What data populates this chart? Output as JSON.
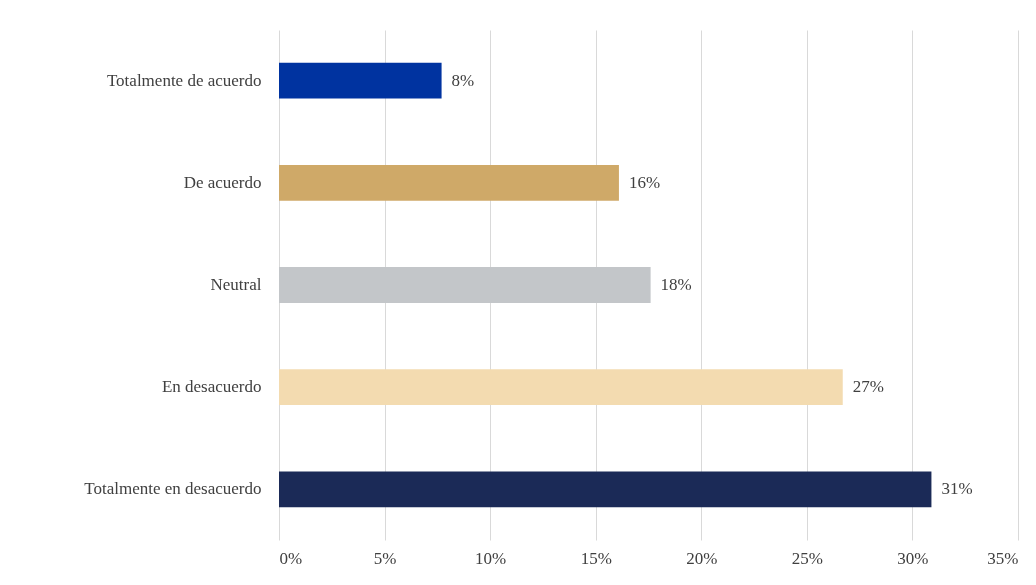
{
  "chart_data": {
    "type": "bar",
    "orientation": "horizontal",
    "categories": [
      "Totalmente de acuerdo",
      "De acuerdo",
      "Neutral",
      "En desacuerdo",
      "Totalmente en desacuerdo"
    ],
    "values": [
      7.7,
      16.1,
      17.6,
      26.7,
      30.9
    ],
    "value_labels": [
      "8%",
      "16%",
      "18%",
      "27%",
      "31%"
    ],
    "colors": [
      "#0033a0",
      "#cfa968",
      "#c3c6c9",
      "#f3dbb0",
      "#1b2a57"
    ],
    "xlim": [
      0,
      35
    ],
    "xticks": [
      {
        "value": 0,
        "label": "0%"
      },
      {
        "value": 5,
        "label": "5%"
      },
      {
        "value": 10,
        "label": "10%"
      },
      {
        "value": 15,
        "label": "15%"
      },
      {
        "value": 20,
        "label": "20%"
      },
      {
        "value": 25,
        "label": "25%"
      },
      {
        "value": 30,
        "label": "30%"
      },
      {
        "value": 35,
        "label": "35%"
      }
    ],
    "grid": "x",
    "legend": false
  }
}
